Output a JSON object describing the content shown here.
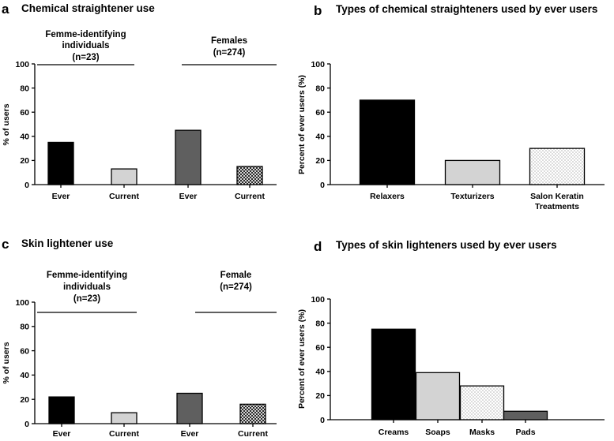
{
  "chart_data": [
    {
      "panel": "a",
      "title": "Chemical straightener use",
      "type": "bar",
      "ylabel": "% of users",
      "xlabel": "",
      "ylim": [
        0,
        100
      ],
      "yticks": [
        "0",
        "20",
        "40",
        "60",
        "80",
        "100"
      ],
      "categories": [
        "Ever",
        "Current",
        "Ever",
        "Current"
      ],
      "values": [
        35,
        13,
        45,
        15
      ],
      "fills": [
        "black",
        "lightgray",
        "darkgray",
        "checker"
      ],
      "groups": [
        {
          "label_lines": [
            "Femme-identifying",
            "individuals",
            "(n=23)"
          ],
          "bars": [
            0,
            1
          ]
        },
        {
          "label_lines": [
            "Females",
            "(n=274)"
          ],
          "bars": [
            2,
            3
          ]
        }
      ]
    },
    {
      "panel": "b",
      "title": "Types of chemical straighteners used by ever users",
      "type": "bar",
      "ylabel": "Percent of ever users (%)",
      "xlabel": "",
      "ylim": [
        0,
        100
      ],
      "yticks": [
        "0",
        "20",
        "40",
        "60",
        "80",
        "100"
      ],
      "categories": [
        "Relaxers",
        "Texturizers",
        "Salon Keratin Treatments"
      ],
      "category_label_lines": [
        [
          "Relaxers"
        ],
        [
          "Texturizers"
        ],
        [
          "Salon Keratin",
          "Treatments"
        ]
      ],
      "values": [
        70,
        20,
        30
      ],
      "fills": [
        "black",
        "lightgray",
        "dots"
      ]
    },
    {
      "panel": "c",
      "title": "Skin lightener use",
      "type": "bar",
      "ylabel": "% of users",
      "xlabel": "",
      "ylim": [
        0,
        100
      ],
      "yticks": [
        "0",
        "20",
        "40",
        "60",
        "80",
        "100"
      ],
      "categories": [
        "Ever",
        "Current",
        "Ever",
        "Current"
      ],
      "values": [
        22,
        9,
        25,
        16
      ],
      "fills": [
        "black",
        "lightgray",
        "darkgray",
        "checker"
      ],
      "groups": [
        {
          "label_lines": [
            "Femme-identifying",
            "individuals",
            "(n=23)"
          ],
          "bars": [
            0,
            1
          ]
        },
        {
          "label_lines": [
            "Female",
            "(n=274)"
          ],
          "bars": [
            2,
            3
          ]
        }
      ]
    },
    {
      "panel": "d",
      "title": "Types of skin lighteners used by ever users",
      "type": "bar",
      "ylabel": "Percent of ever users (%)",
      "xlabel": "",
      "ylim": [
        0,
        100
      ],
      "yticks": [
        "0",
        "20",
        "40",
        "60",
        "80",
        "100"
      ],
      "categories": [
        "Creams",
        "Soaps",
        "Masks",
        "Pads"
      ],
      "category_label_lines": [
        [
          "Creams"
        ],
        [
          "Soaps"
        ],
        [
          "Masks"
        ],
        [
          "Pads"
        ]
      ],
      "values": [
        75,
        39,
        28,
        7
      ],
      "fills": [
        "black",
        "lightgray",
        "dots",
        "darkgray"
      ]
    }
  ]
}
